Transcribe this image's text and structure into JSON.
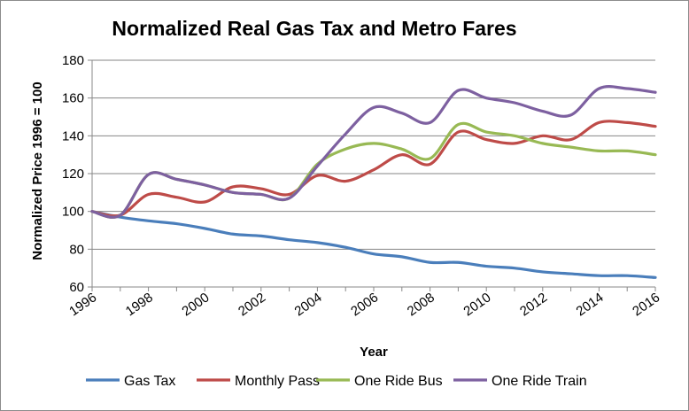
{
  "chart_data": {
    "type": "line",
    "title": "Normalized Real Gas Tax and Metro Fares",
    "xlabel": "Year",
    "ylabel": "Normalized Price 1996 = 100",
    "x": [
      1996,
      1997,
      1998,
      1999,
      2000,
      2001,
      2002,
      2003,
      2004,
      2005,
      2006,
      2007,
      2008,
      2009,
      2010,
      2011,
      2012,
      2013,
      2014,
      2015,
      2016
    ],
    "xlim": [
      1996,
      2016
    ],
    "ylim": [
      60,
      180
    ],
    "x_ticks": [
      "1996",
      "1998",
      "2000",
      "2002",
      "2004",
      "2006",
      "2008",
      "2010",
      "2012",
      "2014",
      "2016"
    ],
    "y_ticks": [
      "60",
      "80",
      "100",
      "120",
      "140",
      "160",
      "180"
    ],
    "grid": "horizontal",
    "legend_position": "bottom",
    "series": [
      {
        "name": "Gas Tax",
        "color": "#4a7ebb",
        "values": [
          100,
          97,
          95,
          93.5,
          91,
          88,
          87,
          85,
          83.5,
          81,
          77.5,
          76,
          73,
          73,
          71,
          70,
          68,
          67,
          66,
          66,
          65
        ]
      },
      {
        "name": "Monthly Pass",
        "color": "#be4b48",
        "values": [
          100,
          98,
          109,
          107.5,
          105,
          113,
          112,
          109,
          119,
          116,
          122,
          130,
          125,
          142,
          138,
          136,
          140,
          138,
          147,
          147,
          145
        ]
      },
      {
        "name": "One Ride Bus",
        "color": "#98b954",
        "values": [
          100,
          98,
          119.5,
          117,
          114,
          110,
          109,
          107,
          125,
          133,
          136,
          133,
          128,
          146,
          142,
          140,
          136,
          134,
          132,
          132,
          130
        ]
      },
      {
        "name": "One Ride Train",
        "color": "#7d60a0",
        "values": [
          100,
          98,
          119.5,
          117,
          114,
          110,
          109,
          107,
          124,
          141,
          155,
          152,
          147,
          164,
          160,
          157.5,
          153,
          151,
          165,
          165,
          163
        ]
      }
    ]
  }
}
